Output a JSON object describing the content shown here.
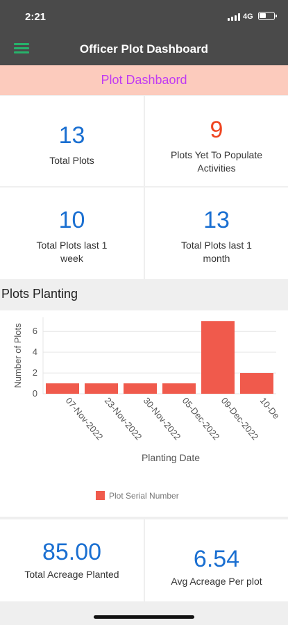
{
  "status_bar": {
    "time": "2:21",
    "network": "4G",
    "icons": [
      "signal-icon",
      "battery-icon"
    ]
  },
  "app_bar": {
    "title": "Officer Plot Dashboard",
    "menu_icon": "hamburger-menu-icon"
  },
  "banner": {
    "text": "Plot Dashbaord",
    "color": "#c03bf2",
    "background": "#fccbbd"
  },
  "stats": {
    "total_plots": {
      "value": "13",
      "label": "Total Plots"
    },
    "plots_yet": {
      "value": "9",
      "label": "Plots Yet To Populate Activities"
    },
    "last_week": {
      "value": "10",
      "label": "Total Plots last 1 week"
    },
    "last_month": {
      "value": "13",
      "label": "Total Plots last 1 month"
    },
    "total_acreage": {
      "value": "85.00",
      "label": "Total Acreage Planted"
    },
    "avg_acreage": {
      "value": "6.54",
      "label": "Avg Acreage Per plot"
    }
  },
  "colors": {
    "value_blue": "#1a6fd1",
    "value_red": "#ef4420",
    "bar": "#f05a4c"
  },
  "section": {
    "title": "Plots Planting"
  },
  "chart_data": {
    "type": "bar",
    "categories": [
      "07-Nov-2022",
      "23-Nov-2022",
      "30-Nov-2022",
      "05-Dec-2022",
      "09-Dec-2022",
      "10-De"
    ],
    "series": [
      {
        "name": "Plot Serial Number",
        "values": [
          1,
          1,
          1,
          1,
          7,
          2
        ]
      }
    ],
    "xlabel": "Planting Date",
    "ylabel": "Number of Plots",
    "yticks": [
      0,
      2,
      4,
      6
    ],
    "ylim": [
      0,
      7.35
    ],
    "grid": true,
    "legend": "bottom"
  }
}
